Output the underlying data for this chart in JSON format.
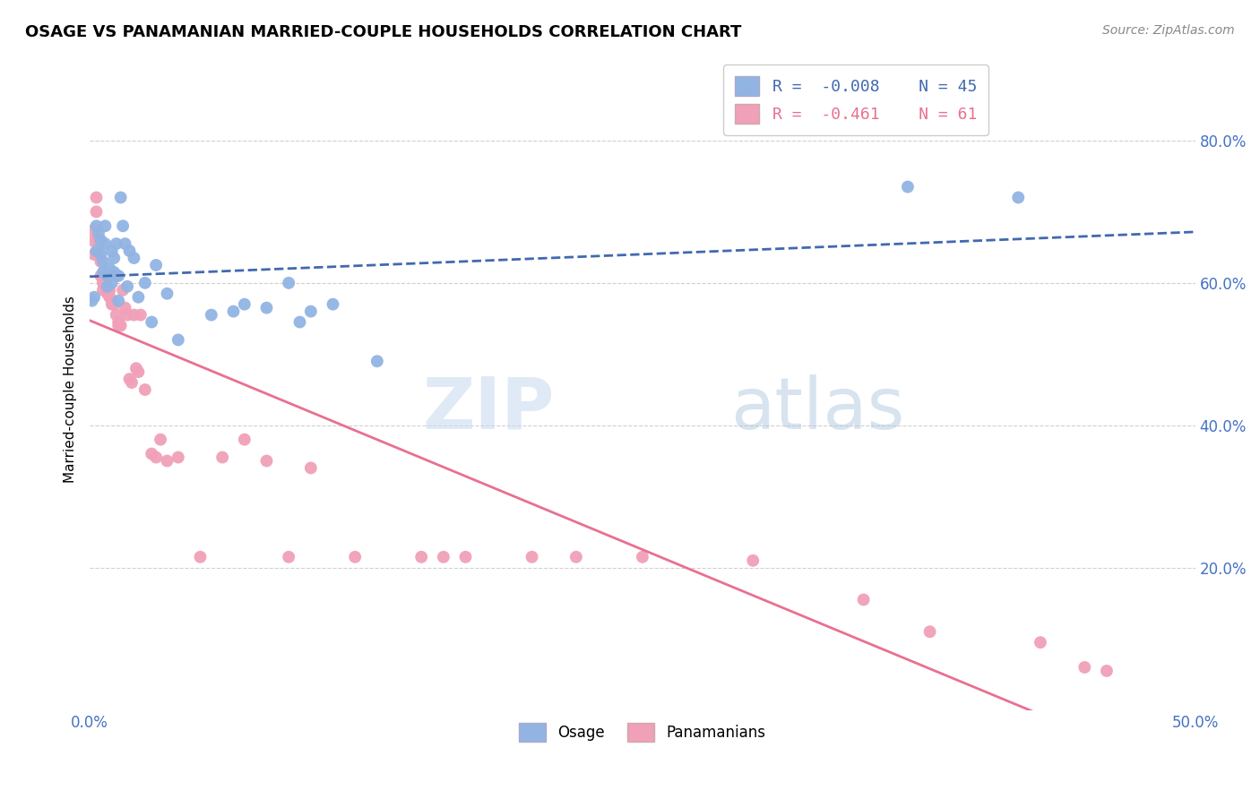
{
  "title": "OSAGE VS PANAMANIAN MARRIED-COUPLE HOUSEHOLDS CORRELATION CHART",
  "source": "Source: ZipAtlas.com",
  "ylabel": "Married-couple Households",
  "ytick_labels": [
    "20.0%",
    "40.0%",
    "60.0%",
    "80.0%"
  ],
  "ytick_values": [
    0.2,
    0.4,
    0.6,
    0.8
  ],
  "xlim": [
    0.0,
    0.5
  ],
  "ylim": [
    0.0,
    0.9
  ],
  "osage_color": "#92b4e3",
  "panamanian_color": "#f0a0b8",
  "osage_line_color": "#4169b0",
  "panamanian_line_color": "#e87090",
  "R_osage": -0.008,
  "N_osage": 45,
  "R_panamanian": -0.461,
  "N_panamanian": 61,
  "legend_labels": [
    "Osage",
    "Panamanians"
  ],
  "osage_x": [
    0.001,
    0.002,
    0.003,
    0.003,
    0.004,
    0.005,
    0.005,
    0.006,
    0.006,
    0.007,
    0.007,
    0.008,
    0.008,
    0.009,
    0.009,
    0.01,
    0.01,
    0.011,
    0.011,
    0.012,
    0.013,
    0.013,
    0.014,
    0.015,
    0.016,
    0.017,
    0.018,
    0.02,
    0.022,
    0.025,
    0.028,
    0.03,
    0.035,
    0.04,
    0.055,
    0.065,
    0.07,
    0.08,
    0.09,
    0.095,
    0.1,
    0.11,
    0.13,
    0.37,
    0.42
  ],
  "osage_y": [
    0.575,
    0.58,
    0.68,
    0.645,
    0.67,
    0.66,
    0.64,
    0.63,
    0.615,
    0.68,
    0.655,
    0.61,
    0.595,
    0.62,
    0.61,
    0.645,
    0.6,
    0.615,
    0.635,
    0.655,
    0.575,
    0.61,
    0.72,
    0.68,
    0.655,
    0.595,
    0.645,
    0.635,
    0.58,
    0.6,
    0.545,
    0.625,
    0.585,
    0.52,
    0.555,
    0.56,
    0.57,
    0.565,
    0.6,
    0.545,
    0.56,
    0.57,
    0.49,
    0.735,
    0.72
  ],
  "panamanian_x": [
    0.001,
    0.002,
    0.002,
    0.003,
    0.003,
    0.004,
    0.004,
    0.005,
    0.005,
    0.006,
    0.006,
    0.006,
    0.007,
    0.007,
    0.008,
    0.008,
    0.009,
    0.009,
    0.01,
    0.01,
    0.011,
    0.011,
    0.012,
    0.012,
    0.013,
    0.013,
    0.014,
    0.015,
    0.016,
    0.017,
    0.018,
    0.019,
    0.02,
    0.021,
    0.022,
    0.023,
    0.025,
    0.028,
    0.03,
    0.032,
    0.035,
    0.04,
    0.06,
    0.08,
    0.1,
    0.12,
    0.16,
    0.2,
    0.25,
    0.3,
    0.35,
    0.38,
    0.43,
    0.45,
    0.46,
    0.15,
    0.17,
    0.22,
    0.09,
    0.05,
    0.07
  ],
  "panamanian_y": [
    0.66,
    0.675,
    0.64,
    0.72,
    0.7,
    0.66,
    0.645,
    0.63,
    0.61,
    0.605,
    0.6,
    0.59,
    0.6,
    0.605,
    0.59,
    0.585,
    0.59,
    0.58,
    0.575,
    0.57,
    0.57,
    0.61,
    0.61,
    0.555,
    0.545,
    0.54,
    0.54,
    0.59,
    0.565,
    0.555,
    0.465,
    0.46,
    0.555,
    0.48,
    0.475,
    0.555,
    0.45,
    0.36,
    0.355,
    0.38,
    0.35,
    0.355,
    0.355,
    0.35,
    0.34,
    0.215,
    0.215,
    0.215,
    0.215,
    0.21,
    0.155,
    0.11,
    0.095,
    0.06,
    0.055,
    0.215,
    0.215,
    0.215,
    0.215,
    0.215,
    0.38
  ],
  "background_color": "#ffffff",
  "grid_color": "#d0d0d0",
  "title_fontsize": 13,
  "tick_label_color": "#4472c4"
}
